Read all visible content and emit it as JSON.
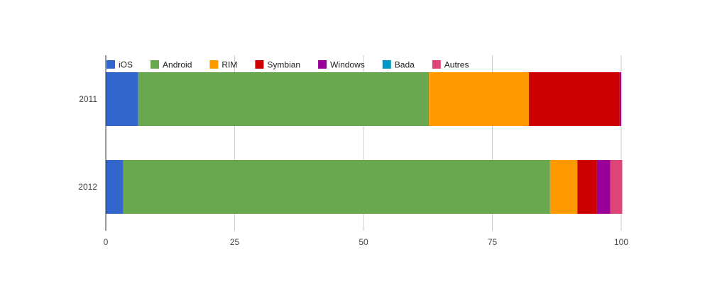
{
  "chart_data": {
    "type": "bar",
    "orientation": "horizontal",
    "stacked": true,
    "categories": [
      "2011",
      "2012"
    ],
    "series": [
      {
        "name": "iOS",
        "color": "#3366cc",
        "values": [
          6.3,
          3.4
        ]
      },
      {
        "name": "Android",
        "color": "#6aa84f",
        "values": [
          56.4,
          82.8
        ]
      },
      {
        "name": "RIM",
        "color": "#ff9900",
        "values": [
          19.4,
          5.3
        ]
      },
      {
        "name": "Symbian",
        "color": "#cc0000",
        "values": [
          17.6,
          3.8
        ]
      },
      {
        "name": "Windows",
        "color": "#990099",
        "values": [
          0.3,
          2.6
        ]
      },
      {
        "name": "Bada",
        "color": "#0099c6",
        "values": [
          0,
          0
        ]
      },
      {
        "name": "Autres",
        "color": "#dd4477",
        "values": [
          0,
          2.3
        ]
      }
    ],
    "xlim": [
      0,
      100
    ],
    "x_ticks": [
      "0",
      "25",
      "50",
      "75",
      "100"
    ],
    "grid": true,
    "legend_position": "top-left",
    "title": "",
    "xlabel": "",
    "ylabel": ""
  }
}
